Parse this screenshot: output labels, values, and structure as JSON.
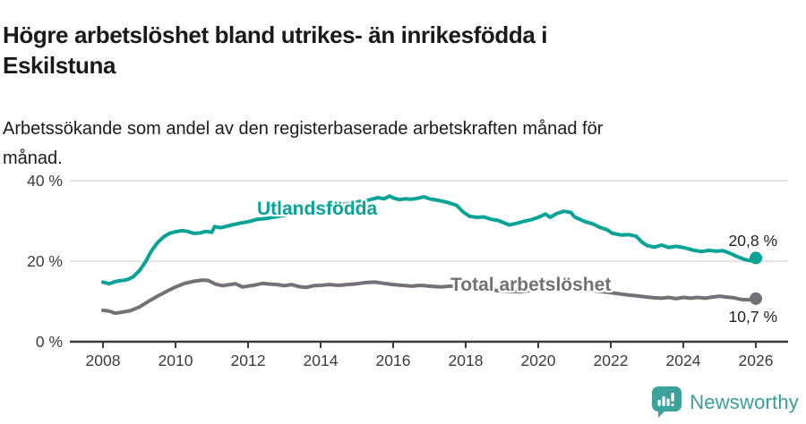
{
  "header": {
    "title": "Högre arbetslöshet bland utrikes- än inrikesfödda i Eskilstuna",
    "title_lines": [
      "Högre arbetslöshet bland utrikes- än inrikesfödda i",
      "Eskilstuna"
    ],
    "subtitle_lines": [
      "Arbetssökande som andel av den registerbaserade arbetskraften månad för",
      "månad."
    ]
  },
  "footer": {
    "brand": "Newsworthy",
    "logo_icon": "bar-chart-speech-bubble"
  },
  "colors": {
    "accent_teal": "#07a397",
    "series_gray": "#757078",
    "grid": "#dcdcdc",
    "axis": "#3a3a3a",
    "text_dark": "#1a1a1a"
  },
  "chart_data": {
    "type": "line",
    "title": "Högre arbetslöshet bland utrikes- än inrikesfödda i Eskilstuna",
    "subtitle": "Arbetssökande som andel av den registerbaserade arbetskraften månad för månad.",
    "xlabel": "",
    "ylabel": "",
    "unit": "%",
    "grid": "horizontal",
    "legend": "inline-labels",
    "x_axis": {
      "ticks": [
        2008,
        2010,
        2012,
        2014,
        2016,
        2018,
        2020,
        2022,
        2024,
        2026
      ],
      "range": [
        2007.1,
        2026.9
      ]
    },
    "y_axis": {
      "ticks": [
        {
          "value": 0,
          "label": "0 %"
        },
        {
          "value": 20,
          "label": "20 %"
        },
        {
          "value": 40,
          "label": "40 %"
        }
      ],
      "range": [
        0,
        43
      ]
    },
    "series": [
      {
        "name": "Utlandsfödda",
        "color": "#07a397",
        "end_label": "20,8 %",
        "end_value": 20.8,
        "points": [
          [
            2008.0,
            14.8
          ],
          [
            2008.17,
            14.4
          ],
          [
            2008.33,
            14.9
          ],
          [
            2008.5,
            15.2
          ],
          [
            2008.67,
            15.4
          ],
          [
            2008.83,
            16.1
          ],
          [
            2009.0,
            17.6
          ],
          [
            2009.17,
            19.8
          ],
          [
            2009.33,
            22.5
          ],
          [
            2009.5,
            24.6
          ],
          [
            2009.67,
            26.0
          ],
          [
            2009.83,
            26.9
          ],
          [
            2010.0,
            27.3
          ],
          [
            2010.17,
            27.6
          ],
          [
            2010.33,
            27.4
          ],
          [
            2010.5,
            26.9
          ],
          [
            2010.67,
            27.0
          ],
          [
            2010.83,
            27.4
          ],
          [
            2011.0,
            27.2
          ],
          [
            2011.08,
            28.6
          ],
          [
            2011.25,
            28.3
          ],
          [
            2011.5,
            28.9
          ],
          [
            2011.75,
            29.4
          ],
          [
            2012.0,
            29.8
          ],
          [
            2012.25,
            30.4
          ],
          [
            2012.5,
            30.6
          ],
          [
            2013.0,
            31.4
          ],
          [
            2013.5,
            32.2
          ],
          [
            2014.0,
            33.1
          ],
          [
            2014.5,
            33.9
          ],
          [
            2015.0,
            34.7
          ],
          [
            2015.33,
            35.2
          ],
          [
            2015.58,
            35.8
          ],
          [
            2015.75,
            35.5
          ],
          [
            2015.9,
            36.2
          ],
          [
            2016.0,
            35.7
          ],
          [
            2016.17,
            35.3
          ],
          [
            2016.33,
            35.5
          ],
          [
            2016.5,
            35.4
          ],
          [
            2016.67,
            35.6
          ],
          [
            2016.85,
            36.0
          ],
          [
            2017.0,
            35.5
          ],
          [
            2017.25,
            35.1
          ],
          [
            2017.5,
            34.6
          ],
          [
            2017.75,
            33.9
          ],
          [
            2017.92,
            32.3
          ],
          [
            2018.1,
            31.2
          ],
          [
            2018.3,
            30.9
          ],
          [
            2018.5,
            31.0
          ],
          [
            2018.7,
            30.4
          ],
          [
            2018.9,
            30.1
          ],
          [
            2019.2,
            29.0
          ],
          [
            2019.4,
            29.4
          ],
          [
            2019.6,
            29.9
          ],
          [
            2019.8,
            30.3
          ],
          [
            2020.0,
            30.9
          ],
          [
            2020.2,
            31.7
          ],
          [
            2020.33,
            30.9
          ],
          [
            2020.5,
            31.8
          ],
          [
            2020.7,
            32.4
          ],
          [
            2020.9,
            32.1
          ],
          [
            2021.0,
            31.0
          ],
          [
            2021.3,
            29.8
          ],
          [
            2021.5,
            29.3
          ],
          [
            2021.7,
            28.4
          ],
          [
            2021.9,
            27.8
          ],
          [
            2022.05,
            26.9
          ],
          [
            2022.3,
            26.5
          ],
          [
            2022.5,
            26.6
          ],
          [
            2022.7,
            26.2
          ],
          [
            2022.85,
            24.8
          ],
          [
            2023.0,
            23.9
          ],
          [
            2023.2,
            23.5
          ],
          [
            2023.4,
            24.0
          ],
          [
            2023.6,
            23.4
          ],
          [
            2023.8,
            23.7
          ],
          [
            2024.0,
            23.4
          ],
          [
            2024.3,
            22.7
          ],
          [
            2024.5,
            22.4
          ],
          [
            2024.7,
            22.7
          ],
          [
            2024.9,
            22.5
          ],
          [
            2025.1,
            22.6
          ],
          [
            2025.3,
            21.9
          ],
          [
            2025.5,
            21.1
          ],
          [
            2025.7,
            20.4
          ],
          [
            2025.85,
            20.1
          ],
          [
            2026.0,
            20.8
          ]
        ]
      },
      {
        "name": "Total arbetslöshet",
        "color": "#757078",
        "end_label": "10,7 %",
        "end_value": 10.7,
        "points": [
          [
            2008.0,
            7.8
          ],
          [
            2008.17,
            7.6
          ],
          [
            2008.33,
            7.1
          ],
          [
            2008.5,
            7.3
          ],
          [
            2008.75,
            7.7
          ],
          [
            2009.0,
            8.6
          ],
          [
            2009.25,
            10.0
          ],
          [
            2009.5,
            11.3
          ],
          [
            2009.75,
            12.5
          ],
          [
            2010.0,
            13.6
          ],
          [
            2010.25,
            14.5
          ],
          [
            2010.5,
            15.0
          ],
          [
            2010.75,
            15.3
          ],
          [
            2010.9,
            15.2
          ],
          [
            2011.1,
            14.3
          ],
          [
            2011.3,
            13.9
          ],
          [
            2011.5,
            14.2
          ],
          [
            2011.65,
            14.4
          ],
          [
            2011.85,
            13.6
          ],
          [
            2012.0,
            13.8
          ],
          [
            2012.2,
            14.1
          ],
          [
            2012.4,
            14.5
          ],
          [
            2012.6,
            14.3
          ],
          [
            2012.8,
            14.2
          ],
          [
            2013.0,
            13.9
          ],
          [
            2013.2,
            14.2
          ],
          [
            2013.4,
            13.7
          ],
          [
            2013.6,
            13.5
          ],
          [
            2013.8,
            13.9
          ],
          [
            2014.0,
            14.0
          ],
          [
            2014.25,
            14.2
          ],
          [
            2014.5,
            14.0
          ],
          [
            2014.75,
            14.2
          ],
          [
            2015.0,
            14.4
          ],
          [
            2015.25,
            14.7
          ],
          [
            2015.5,
            14.8
          ],
          [
            2015.75,
            14.5
          ],
          [
            2016.0,
            14.2
          ],
          [
            2016.25,
            14.0
          ],
          [
            2016.5,
            13.8
          ],
          [
            2016.75,
            14.0
          ],
          [
            2017.0,
            13.8
          ],
          [
            2017.3,
            13.6
          ],
          [
            2017.6,
            13.8
          ],
          [
            2018.0,
            13.3
          ],
          [
            2018.5,
            13.0
          ],
          [
            2019.0,
            12.6
          ],
          [
            2019.5,
            12.4
          ],
          [
            2020.0,
            12.9
          ],
          [
            2020.5,
            13.6
          ],
          [
            2021.0,
            13.2
          ],
          [
            2021.5,
            12.7
          ],
          [
            2022.0,
            12.2
          ],
          [
            2022.4,
            11.7
          ],
          [
            2022.6,
            11.5
          ],
          [
            2022.8,
            11.3
          ],
          [
            2023.0,
            11.1
          ],
          [
            2023.2,
            10.9
          ],
          [
            2023.4,
            10.8
          ],
          [
            2023.6,
            11.0
          ],
          [
            2023.8,
            10.7
          ],
          [
            2024.0,
            11.0
          ],
          [
            2024.2,
            10.8
          ],
          [
            2024.4,
            11.0
          ],
          [
            2024.6,
            10.8
          ],
          [
            2024.8,
            11.1
          ],
          [
            2025.0,
            11.3
          ],
          [
            2025.2,
            11.1
          ],
          [
            2025.4,
            10.9
          ],
          [
            2025.6,
            10.5
          ],
          [
            2025.8,
            10.4
          ],
          [
            2026.0,
            10.7
          ]
        ]
      }
    ]
  }
}
